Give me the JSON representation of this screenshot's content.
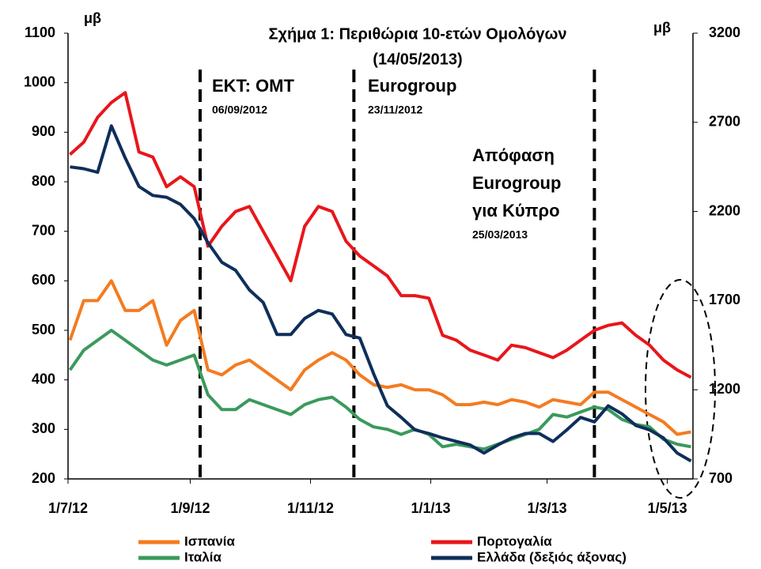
{
  "chart_data": {
    "type": "line",
    "title": "Σχήμα 1: Περιθώρια 10-ετών Ομολόγων",
    "subtitle": "(14/05/2013)",
    "y_label": "μβ",
    "y2_label": "μβ",
    "x": [
      "2012-07-02",
      "2012-07-09",
      "2012-07-16",
      "2012-07-23",
      "2012-07-30",
      "2012-08-06",
      "2012-08-13",
      "2012-08-20",
      "2012-08-27",
      "2012-09-03",
      "2012-09-10",
      "2012-09-17",
      "2012-09-24",
      "2012-10-01",
      "2012-10-08",
      "2012-10-15",
      "2012-10-22",
      "2012-10-29",
      "2012-11-05",
      "2012-11-12",
      "2012-11-19",
      "2012-11-26",
      "2012-12-03",
      "2012-12-10",
      "2012-12-17",
      "2012-12-24",
      "2012-12-31",
      "2013-01-07",
      "2013-01-14",
      "2013-01-21",
      "2013-01-28",
      "2013-02-04",
      "2013-02-11",
      "2013-02-18",
      "2013-02-25",
      "2013-03-04",
      "2013-03-11",
      "2013-03-18",
      "2013-03-25",
      "2013-04-01",
      "2013-04-08",
      "2013-04-15",
      "2013-04-22",
      "2013-04-29",
      "2013-05-06",
      "2013-05-13"
    ],
    "series": [
      {
        "name": "Ισπανία",
        "color": "#f47b20",
        "values": [
          480,
          560,
          560,
          600,
          540,
          540,
          560,
          470,
          520,
          540,
          420,
          410,
          430,
          440,
          420,
          400,
          380,
          420,
          440,
          455,
          440,
          410,
          390,
          385,
          390,
          380,
          380,
          370,
          350,
          350,
          355,
          350,
          360,
          355,
          345,
          360,
          355,
          350,
          375,
          375,
          360,
          345,
          330,
          315,
          290,
          295
        ]
      },
      {
        "name": "Πορτογαλία",
        "color": "#e8161b",
        "values": [
          855,
          880,
          930,
          960,
          980,
          860,
          850,
          790,
          810,
          790,
          670,
          710,
          740,
          750,
          700,
          650,
          600,
          710,
          750,
          740,
          680,
          650,
          630,
          610,
          570,
          570,
          565,
          490,
          480,
          460,
          450,
          440,
          470,
          465,
          455,
          445,
          460,
          480,
          500,
          510,
          515,
          490,
          470,
          440,
          420,
          405
        ]
      },
      {
        "name": "Ιταλία",
        "color": "#3a9a5c",
        "values": [
          420,
          460,
          480,
          500,
          480,
          460,
          440,
          430,
          440,
          450,
          370,
          340,
          340,
          360,
          350,
          340,
          330,
          350,
          360,
          365,
          345,
          320,
          305,
          300,
          290,
          300,
          290,
          265,
          270,
          265,
          260,
          270,
          280,
          290,
          300,
          330,
          325,
          335,
          345,
          340,
          320,
          310,
          305,
          280,
          270,
          265
        ]
      },
      {
        "name": "Ελλάδα (δεξιός άξονας)",
        "color": "#0e2f5a",
        "axis": "y2",
        "values": [
          2450,
          2440,
          2420,
          2680,
          2500,
          2340,
          2290,
          2280,
          2240,
          2160,
          2025,
          1915,
          1870,
          1760,
          1690,
          1510,
          1510,
          1600,
          1645,
          1625,
          1510,
          1490,
          1290,
          1110,
          1045,
          975,
          955,
          930,
          910,
          890,
          845,
          890,
          930,
          955,
          955,
          910,
          975,
          1045,
          1020,
          1110,
          1065,
          1000,
          975,
          930,
          845,
          800
        ]
      }
    ],
    "xlim": [
      "2012-07-01",
      "2013-05-14"
    ],
    "xticks": [
      {
        "value": "2012-07-01",
        "label": "1/7/12"
      },
      {
        "value": "2012-09-01",
        "label": "1/9/12"
      },
      {
        "value": "2012-11-01",
        "label": "1/11/12"
      },
      {
        "value": "2013-01-01",
        "label": "1/1/13"
      },
      {
        "value": "2013-03-01",
        "label": "1/3/13"
      },
      {
        "value": "2013-05-01",
        "label": "1/5/13"
      }
    ],
    "ylim": [
      200,
      1100
    ],
    "yticks": [
      200,
      300,
      400,
      500,
      600,
      700,
      800,
      900,
      1000,
      1100
    ],
    "y2lim": [
      700,
      3200
    ],
    "y2ticks": [
      700,
      1200,
      1700,
      2200,
      2700,
      3200
    ],
    "annotations": [
      {
        "lines": [
          "ΕΚΤ: ΟΜΤ"
        ],
        "date": "06/09/2012"
      },
      {
        "lines": [
          "Eurogroup"
        ],
        "date": "23/11/2012"
      },
      {
        "lines": [
          "Απόφαση",
          "Eurogroup",
          "για Κύπρο"
        ],
        "date": "25/03/2013"
      }
    ]
  }
}
